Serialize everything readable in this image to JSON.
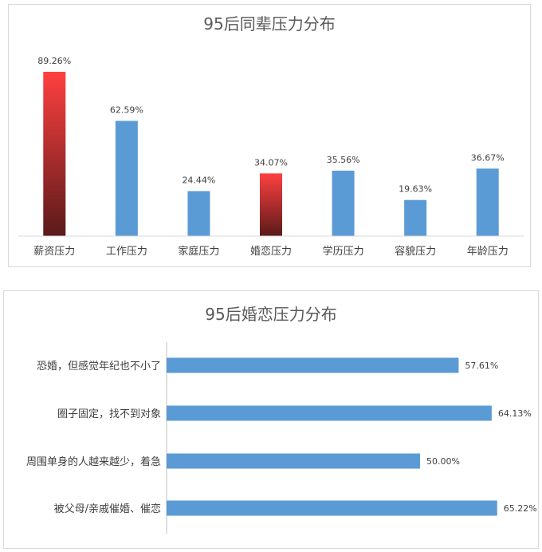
{
  "chart_data": [
    {
      "type": "bar",
      "title": "95后同辈压力分布",
      "categories": [
        "薪资压力",
        "工作压力",
        "家庭压力",
        "婚恋压力",
        "学历压力",
        "容貌压力",
        "年龄压力"
      ],
      "values": [
        89.26,
        62.59,
        24.44,
        34.07,
        35.56,
        19.63,
        36.67
      ],
      "value_labels": [
        "89.26%",
        "62.59%",
        "24.44%",
        "34.07%",
        "35.56%",
        "19.63%",
        "36.67%"
      ],
      "highlight_categories": [
        "薪资压力",
        "婚恋压力"
      ],
      "ylim": [
        0,
        100
      ],
      "grid": false,
      "colors": {
        "default": "#5b9bd5",
        "highlight_top": "#ff4040",
        "highlight_bottom": "#5a1a1a"
      }
    },
    {
      "type": "bar",
      "orientation": "horizontal",
      "title": "95后婚恋压力分布",
      "categories": [
        "恐婚，但感觉年纪也不小了",
        "圈子固定，找不到对象",
        "周围单身的人越来越少，着急",
        "被父母/亲戚催婚、催恋"
      ],
      "values": [
        57.61,
        64.13,
        50.0,
        65.22
      ],
      "value_labels": [
        "57.61%",
        "64.13%",
        "50.00%",
        "65.22%"
      ],
      "xlim": [
        0,
        70
      ],
      "grid": false,
      "colors": {
        "default": "#5b9bd5"
      }
    }
  ]
}
